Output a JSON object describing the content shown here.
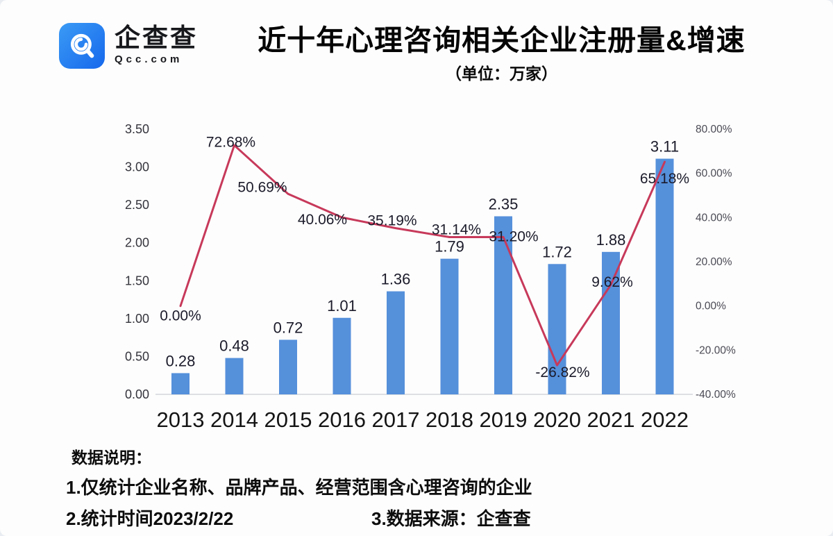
{
  "logo": {
    "brand": "企查查",
    "domain": "Qcc.com",
    "icon": "qcc-magnifier-icon",
    "brand_color": "#1f7af0"
  },
  "header": {
    "title": "近十年心理咨询相关企业注册量&增速",
    "subtitle": "（单位：万家）"
  },
  "chart_data": {
    "type": "bar+line",
    "title": "近十年心理咨询相关企业注册量&增速",
    "unit_note": "（单位：万家）",
    "categories": [
      "2013",
      "2014",
      "2015",
      "2016",
      "2017",
      "2018",
      "2019",
      "2020",
      "2021",
      "2022"
    ],
    "series": [
      {
        "name": "注册量（万家）",
        "type": "bar",
        "axis": "left",
        "color": "#5590DB",
        "values": [
          0.28,
          0.48,
          0.72,
          1.01,
          1.36,
          1.79,
          2.35,
          1.72,
          1.88,
          3.11
        ],
        "labels": [
          "0.28",
          "0.48",
          "0.72",
          "1.01",
          "1.36",
          "1.79",
          "2.35",
          "1.72",
          "1.88",
          "3.11"
        ]
      },
      {
        "name": "增速",
        "type": "line",
        "axis": "right",
        "color": "#C7395A",
        "values": [
          0.0,
          72.68,
          50.69,
          40.06,
          35.19,
          31.14,
          31.2,
          -26.82,
          9.62,
          65.18
        ],
        "labels": [
          "0.00%",
          "72.68%",
          "50.69%",
          "40.06%",
          "35.19%",
          "31.14%",
          "31.20%",
          "-26.82%",
          "9.62%",
          "65.18%"
        ]
      }
    ],
    "left_axis": {
      "min": 0,
      "max": 3.5,
      "ticks": [
        "3.50",
        "3.00",
        "2.50",
        "2.00",
        "1.50",
        "1.00",
        "0.50",
        "0.00"
      ]
    },
    "right_axis": {
      "min": -40,
      "max": 80,
      "ticks": [
        "80.00%",
        "60.00%",
        "40.00%",
        "20.00%",
        "0.00%",
        "-20.00%",
        "-40.00%"
      ]
    },
    "grid": false,
    "legend": "none",
    "label_color": "#1b1b2b",
    "axis_label_color_left": "#33333c",
    "axis_label_color_right": "#4a4a55",
    "year_label_color": "#141414",
    "baseline_color": "#dddfe3"
  },
  "footer": {
    "heading": "数据说明：",
    "note1": "1.仅统计企业名称、品牌产品、经营范围含心理咨询的企业",
    "note2": "2.统计时间2023/2/22",
    "note3": "3.数据来源：企查查"
  }
}
